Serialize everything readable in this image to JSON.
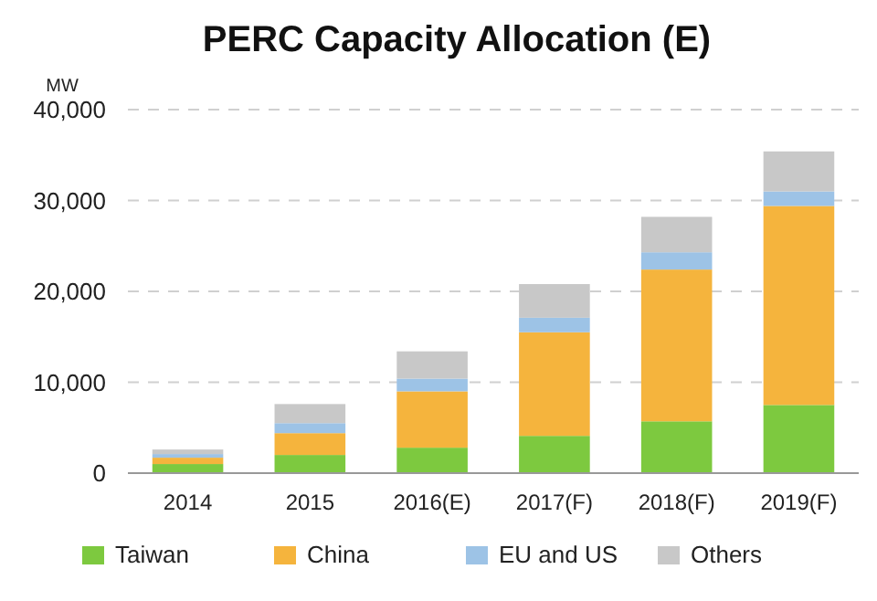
{
  "chart_data": {
    "type": "bar",
    "title": "PERC Capacity Allocation (E)",
    "ylabel": "MW",
    "categories": [
      "2014",
      "2015",
      "2016(E)",
      "2017(F)",
      "2018(F)",
      "2019(F)"
    ],
    "stacked": true,
    "series": [
      {
        "name": "Taiwan",
        "color": "#7dc93f",
        "values": [
          1000,
          2000,
          2800,
          4100,
          5700,
          7500
        ]
      },
      {
        "name": "China",
        "color": "#f5b43d",
        "values": [
          700,
          2400,
          6200,
          11400,
          16700,
          21900
        ]
      },
      {
        "name": "EU and US",
        "color": "#9dc3e6",
        "values": [
          400,
          1100,
          1400,
          1600,
          1900,
          1600
        ]
      },
      {
        "name": "Others",
        "color": "#c8c8c8",
        "values": [
          500,
          2100,
          3000,
          3700,
          3900,
          4400
        ]
      }
    ],
    "ylim": [
      0,
      40000
    ],
    "yticks": [
      {
        "value": 0,
        "label": "0"
      },
      {
        "value": 10000,
        "label": "10,000"
      },
      {
        "value": 20000,
        "label": "20,000"
      },
      {
        "value": 30000,
        "label": "30,000"
      },
      {
        "value": 40000,
        "label": "40,000"
      }
    ],
    "grid": "y",
    "legend": "bottom"
  }
}
